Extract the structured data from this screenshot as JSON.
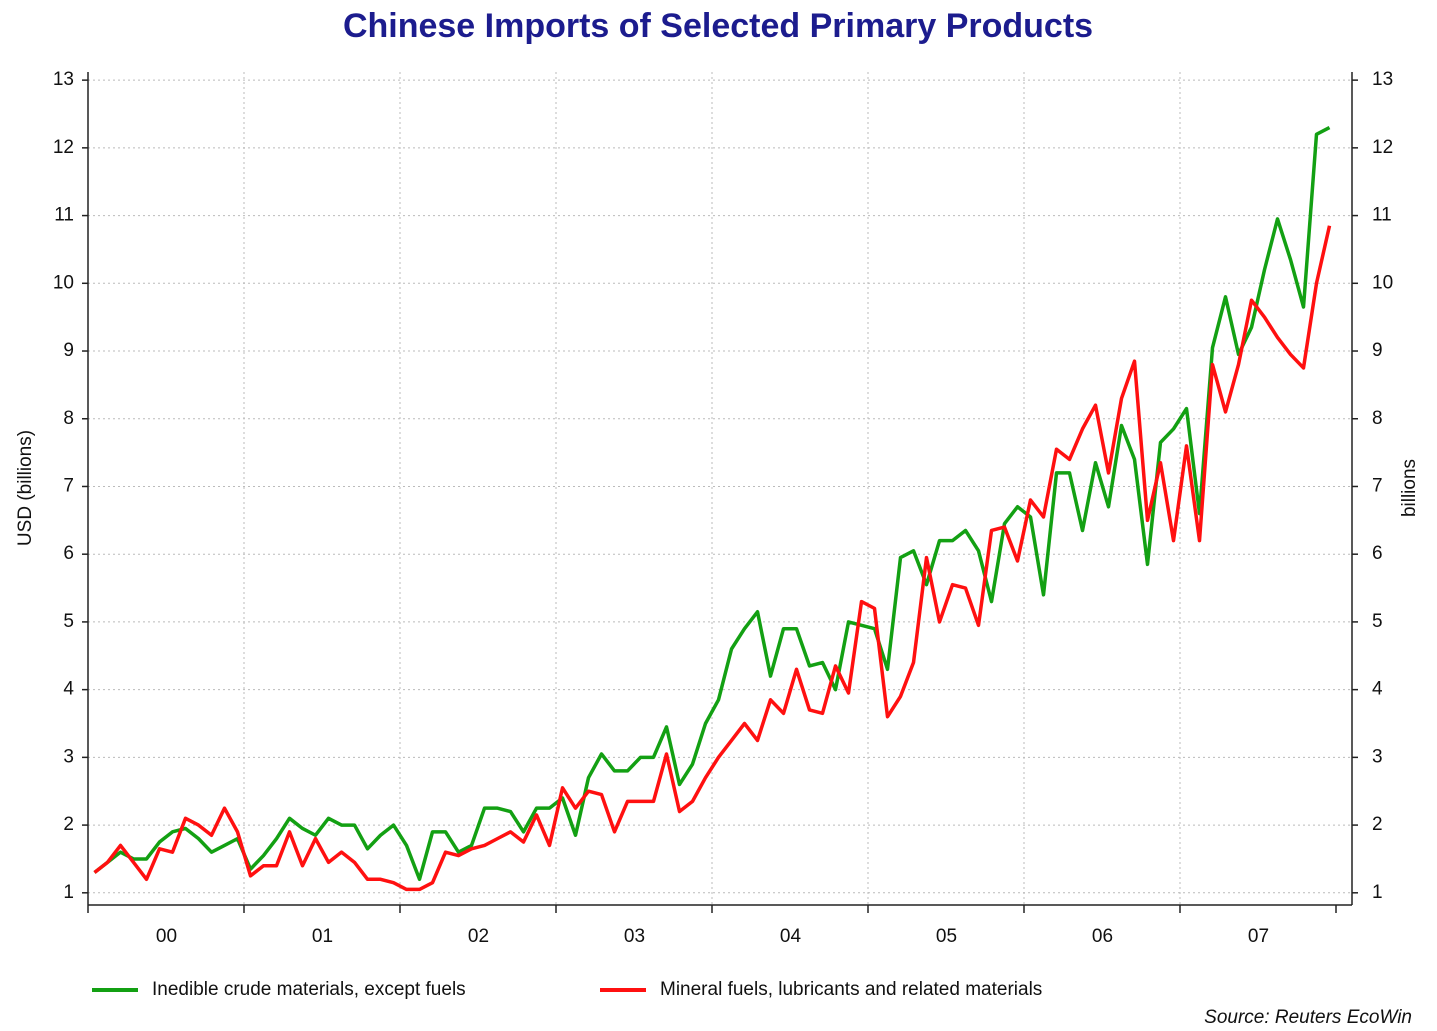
{
  "chart_data": {
    "type": "line",
    "title": "Chinese Imports of Selected Primary Products",
    "y_label": "USD (billions)",
    "y2_label": "billions",
    "source": "Source: Reuters EcoWin",
    "categories": [
      null,
      null,
      null,
      null,
      null,
      null,
      "00",
      null,
      null,
      null,
      null,
      null,
      null,
      null,
      null,
      null,
      null,
      null,
      "01",
      null,
      null,
      null,
      null,
      null,
      null,
      null,
      null,
      null,
      null,
      null,
      "02",
      null,
      null,
      null,
      null,
      null,
      null,
      null,
      null,
      null,
      null,
      null,
      "03",
      null,
      null,
      null,
      null,
      null,
      null,
      null,
      null,
      null,
      null,
      null,
      "04",
      null,
      null,
      null,
      null,
      null,
      null,
      null,
      null,
      null,
      null,
      null,
      "05",
      null,
      null,
      null,
      null,
      null,
      null,
      null,
      null,
      null,
      null,
      null,
      "06",
      null,
      null,
      null,
      null,
      null,
      null,
      null,
      null,
      null,
      null,
      null,
      "07",
      null,
      null,
      null,
      null,
      null
    ],
    "series": [
      {
        "name": "Inedible crude materials, except fuels",
        "color": "#13a013",
        "values": [
          1.3,
          1.45,
          1.6,
          1.5,
          1.5,
          1.75,
          1.9,
          1.95,
          1.8,
          1.6,
          1.7,
          1.8,
          1.35,
          1.55,
          1.8,
          2.1,
          1.95,
          1.85,
          2.1,
          2.0,
          2.0,
          1.65,
          1.85,
          2.0,
          1.7,
          1.2,
          1.9,
          1.9,
          1.6,
          1.7,
          2.25,
          2.25,
          2.2,
          1.9,
          2.25,
          2.25,
          2.4,
          1.85,
          2.7,
          3.05,
          2.8,
          2.8,
          3.0,
          3.0,
          3.45,
          2.6,
          2.9,
          3.5,
          3.85,
          4.6,
          4.9,
          5.15,
          4.2,
          4.9,
          4.9,
          4.35,
          4.4,
          4.0,
          5.0,
          4.95,
          4.9,
          4.3,
          5.95,
          6.05,
          5.55,
          6.2,
          6.2,
          6.35,
          6.05,
          5.3,
          6.45,
          6.7,
          6.55,
          5.4,
          7.2,
          7.2,
          6.35,
          7.35,
          6.7,
          7.9,
          7.4,
          5.85,
          7.65,
          7.85,
          8.15,
          6.6,
          9.05,
          9.8,
          8.95,
          9.35,
          10.2,
          10.95,
          10.35,
          9.65,
          12.2,
          12.3
        ]
      },
      {
        "name": "Mineral fuels, lubricants and related materials",
        "color": "#ff1010",
        "values": [
          1.3,
          1.45,
          1.7,
          1.45,
          1.2,
          1.65,
          1.6,
          2.1,
          2.0,
          1.85,
          2.25,
          1.9,
          1.25,
          1.4,
          1.4,
          1.9,
          1.4,
          1.8,
          1.45,
          1.6,
          1.45,
          1.2,
          1.2,
          1.15,
          1.05,
          1.05,
          1.15,
          1.6,
          1.55,
          1.65,
          1.7,
          1.8,
          1.9,
          1.75,
          2.15,
          1.7,
          2.55,
          2.25,
          2.5,
          2.45,
          1.9,
          2.35,
          2.35,
          2.35,
          3.05,
          2.2,
          2.35,
          2.7,
          3.0,
          3.25,
          3.5,
          3.25,
          3.85,
          3.65,
          4.3,
          3.7,
          3.65,
          4.35,
          3.95,
          5.3,
          5.2,
          3.6,
          3.9,
          4.4,
          5.95,
          5.0,
          5.55,
          5.5,
          4.95,
          6.35,
          6.4,
          5.9,
          6.8,
          6.55,
          7.55,
          7.4,
          7.85,
          8.2,
          7.2,
          8.3,
          8.85,
          6.5,
          7.35,
          6.2,
          7.6,
          6.2,
          8.8,
          8.1,
          8.8,
          9.75,
          9.5,
          9.2,
          8.95,
          8.75,
          10.0,
          10.85
        ]
      }
    ],
    "ylim": [
      0.82,
      13.12
    ],
    "yticks": [
      1,
      2,
      3,
      4,
      5,
      6,
      7,
      8,
      9,
      10,
      11,
      12,
      13
    ],
    "y2lim": [
      0.82,
      13.12
    ],
    "y2ticks": [
      1,
      2,
      3,
      4,
      5,
      6,
      7,
      8,
      9,
      10,
      11,
      12,
      13
    ],
    "grid": true,
    "legend": "bottom"
  }
}
